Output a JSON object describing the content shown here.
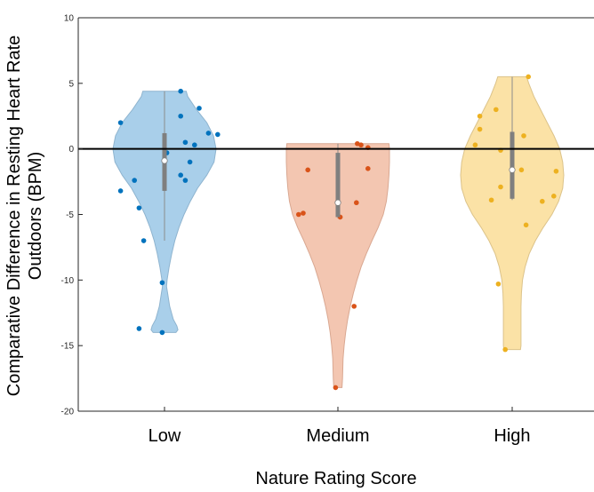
{
  "chart_data": {
    "type": "violin",
    "title": "",
    "xlabel": "Nature Rating Score",
    "ylabel_lines": [
      "Comparative Difference in Resting Heart Rate",
      "Outdoors (BPM)"
    ],
    "categories": [
      "Low",
      "Medium",
      "High"
    ],
    "ylim": [
      -20,
      10
    ],
    "yticks": [
      10,
      5,
      0,
      -5,
      -10,
      -15,
      -20
    ],
    "reference_line_y": 0,
    "grid": false,
    "legend": "none",
    "colors": {
      "Low": {
        "fill": "#a9cfea",
        "stroke": "#8fb4cf",
        "points": "#0072bd"
      },
      "Medium": {
        "fill": "#f3c6b1",
        "stroke": "#d9a892",
        "points": "#d95319"
      },
      "High": {
        "fill": "#fbe2a6",
        "stroke": "#dcc38a",
        "points": "#edb120"
      }
    },
    "series": [
      {
        "category": "Low",
        "median": -0.9,
        "q1": -3.2,
        "q3": 1.2,
        "whisker": [
          -7,
          4.4
        ],
        "range": [
          -14,
          4.4
        ],
        "density": [
          [
            -14.0,
            0.22
          ],
          [
            -13.8,
            0.26
          ],
          [
            -13.5,
            0.24
          ],
          [
            -13,
            0.17
          ],
          [
            -12,
            0.1
          ],
          [
            -11,
            0.06
          ],
          [
            -10.5,
            0.04
          ],
          [
            -10,
            0.05
          ],
          [
            -9,
            0.09
          ],
          [
            -8,
            0.14
          ],
          [
            -7,
            0.2
          ],
          [
            -6,
            0.28
          ],
          [
            -5,
            0.38
          ],
          [
            -4,
            0.5
          ],
          [
            -3,
            0.64
          ],
          [
            -2,
            0.82
          ],
          [
            -1,
            0.96
          ],
          [
            0,
            1.0
          ],
          [
            1,
            0.95
          ],
          [
            2,
            0.82
          ],
          [
            3,
            0.62
          ],
          [
            4,
            0.45
          ],
          [
            4.4,
            0.42
          ]
        ],
        "points": [
          [
            -14.0,
            -0.05
          ],
          [
            -13.7,
            -0.55
          ],
          [
            -10.2,
            -0.05
          ],
          [
            -7.0,
            -0.45
          ],
          [
            -4.5,
            -0.55
          ],
          [
            -3.2,
            -0.95
          ],
          [
            -2.4,
            0.45
          ],
          [
            -2.0,
            0.35
          ],
          [
            -1.0,
            0.55
          ],
          [
            -0.3,
            0.05
          ],
          [
            0.3,
            0.65
          ],
          [
            0.5,
            0.45
          ],
          [
            1.1,
            1.15
          ],
          [
            1.2,
            0.95
          ],
          [
            2.0,
            -0.95
          ],
          [
            2.5,
            0.35
          ],
          [
            3.1,
            0.75
          ],
          [
            4.4,
            0.35
          ],
          [
            -2.4,
            -0.65
          ]
        ]
      },
      {
        "category": "Medium",
        "median": -4.1,
        "q1": -5.2,
        "q3": -0.3,
        "whisker": [
          -5.3,
          0.4
        ],
        "range": [
          -18.2,
          0.4
        ],
        "density": [
          [
            -18.2,
            0.08
          ],
          [
            -17.5,
            0.09
          ],
          [
            -16,
            0.1
          ],
          [
            -15,
            0.12
          ],
          [
            -14,
            0.15
          ],
          [
            -13,
            0.19
          ],
          [
            -12,
            0.24
          ],
          [
            -11,
            0.3
          ],
          [
            -10,
            0.37
          ],
          [
            -9,
            0.45
          ],
          [
            -8,
            0.55
          ],
          [
            -7,
            0.66
          ],
          [
            -6,
            0.78
          ],
          [
            -5,
            0.88
          ],
          [
            -4,
            0.94
          ],
          [
            -3,
            0.97
          ],
          [
            -2,
            0.99
          ],
          [
            -1,
            1.0
          ],
          [
            0,
            1.0
          ],
          [
            0.4,
            0.99
          ]
        ],
        "points": [
          [
            -18.2,
            -0.05
          ],
          [
            -12.0,
            0.35
          ],
          [
            -5.0,
            -0.85
          ],
          [
            -4.9,
            -0.75
          ],
          [
            -4.1,
            0.4
          ],
          [
            -1.6,
            -0.65
          ],
          [
            -1.5,
            0.65
          ],
          [
            0.1,
            0.65
          ],
          [
            0.3,
            0.5
          ],
          [
            0.4,
            0.42
          ],
          [
            -5.2,
            0.05
          ]
        ]
      },
      {
        "category": "High",
        "median": -1.6,
        "q1": -3.8,
        "q3": 1.3,
        "whisker": [
          -3.9,
          5.5
        ],
        "range": [
          -15.3,
          5.5
        ],
        "density": [
          [
            -15.3,
            0.16
          ],
          [
            -15,
            0.17
          ],
          [
            -14,
            0.17
          ],
          [
            -13,
            0.17
          ],
          [
            -12,
            0.17
          ],
          [
            -11,
            0.18
          ],
          [
            -10,
            0.2
          ],
          [
            -9,
            0.25
          ],
          [
            -8,
            0.33
          ],
          [
            -7,
            0.45
          ],
          [
            -6,
            0.6
          ],
          [
            -5,
            0.77
          ],
          [
            -4,
            0.9
          ],
          [
            -3,
            0.98
          ],
          [
            -2,
            1.0
          ],
          [
            -1,
            0.98
          ],
          [
            0,
            0.92
          ],
          [
            1,
            0.81
          ],
          [
            2,
            0.68
          ],
          [
            3,
            0.55
          ],
          [
            4,
            0.42
          ],
          [
            5,
            0.32
          ],
          [
            5.5,
            0.28
          ]
        ],
        "points": [
          [
            -15.3,
            -0.15
          ],
          [
            -10.3,
            -0.3
          ],
          [
            -5.8,
            0.3
          ],
          [
            -3.9,
            -0.45
          ],
          [
            -4.0,
            0.65
          ],
          [
            -3.6,
            0.9
          ],
          [
            -2.9,
            -0.25
          ],
          [
            -1.7,
            0.95
          ],
          [
            -1.6,
            0.2
          ],
          [
            -0.1,
            -0.25
          ],
          [
            1.0,
            0.25
          ],
          [
            1.5,
            -0.7
          ],
          [
            2.5,
            -0.7
          ],
          [
            3.0,
            -0.35
          ],
          [
            5.5,
            0.35
          ],
          [
            0.3,
            -0.8
          ]
        ]
      }
    ]
  }
}
